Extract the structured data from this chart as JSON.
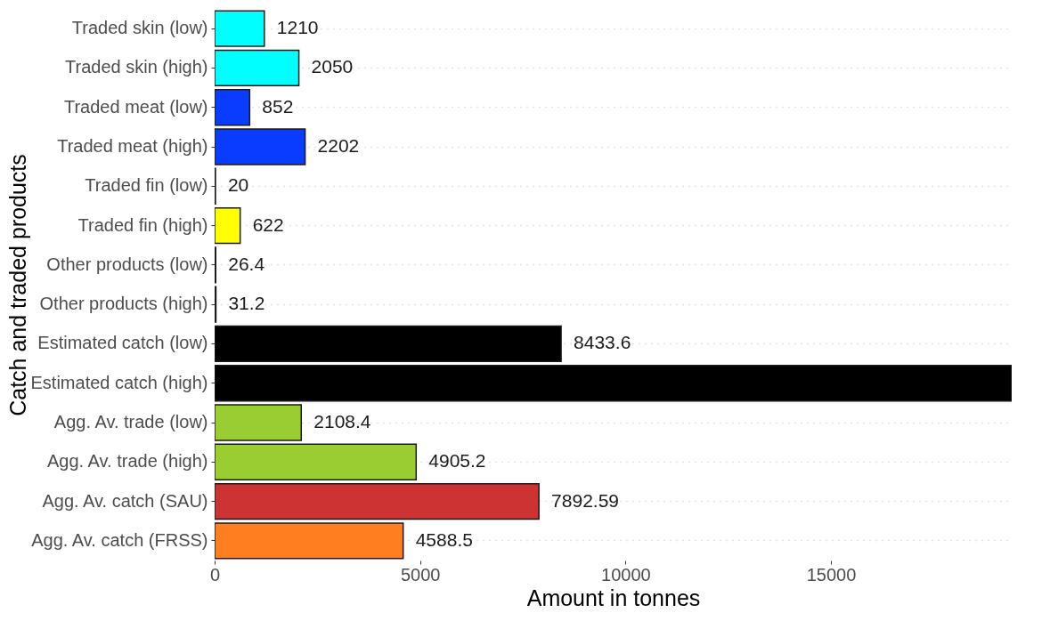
{
  "chart_data": {
    "type": "bar",
    "orientation": "horizontal",
    "xlabel": "Amount in tonnes",
    "ylabel": "Catch and traded products",
    "categories": [
      "Traded skin (low)",
      "Traded skin (high)",
      "Traded meat (low)",
      "Traded meat (high)",
      "Traded fin (low)",
      "Traded fin (high)",
      "Other products (low)",
      "Other products (high)",
      "Estimated catch (low)",
      "Estimated catch (high)",
      "Agg. Av. trade (low)",
      "Agg. Av. trade (high)",
      "Agg. Av. catch (SAU)",
      "Agg. Av. catch (FRSS)"
    ],
    "values": [
      1210,
      2050,
      852,
      2202,
      20,
      622,
      26.4,
      31.2,
      8433.6,
      19400,
      2108.4,
      4905.2,
      7892.59,
      4588.5
    ],
    "value_labels": [
      "1210",
      "2050",
      "852",
      "2202",
      "20",
      "622",
      "26.4",
      "31.2",
      "8433.6",
      null,
      "2108.4",
      "4905.2",
      "7892.59",
      "4588.5"
    ],
    "colors": [
      "#00ffff",
      "#00ffff",
      "#0a3cff",
      "#0a3cff",
      "#ffff00",
      "#ffff00",
      "#000000",
      "#000000",
      "#000000",
      "#000000",
      "#9acd32",
      "#9acd32",
      "#cd3333",
      "#ff7f20"
    ],
    "xlim": [
      0,
      19400
    ],
    "xticks": [
      0,
      5000,
      10000,
      15000
    ],
    "grid": "y"
  }
}
